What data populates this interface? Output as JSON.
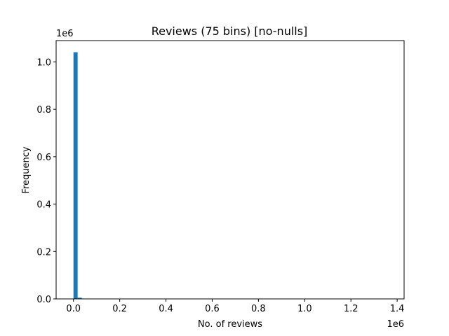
{
  "chart_data": {
    "type": "bar",
    "title": "Reviews (75 bins) [no-nulls]",
    "xlabel": "No. of reviews",
    "ylabel": "Frequency",
    "x_offset_label": "1e6",
    "y_offset_label": "1e6",
    "xlim": [
      -75000,
      1430000
    ],
    "ylim": [
      0,
      1090000
    ],
    "x_ticks": [
      0,
      200000,
      400000,
      600000,
      800000,
      1000000,
      1200000,
      1400000
    ],
    "x_tick_labels": [
      "0.0",
      "0.2",
      "0.4",
      "0.6",
      "0.8",
      "1.0",
      "1.2",
      "1.4"
    ],
    "y_ticks": [
      0,
      200000,
      400000,
      600000,
      800000,
      1000000
    ],
    "y_tick_labels": [
      "0.0",
      "0.2",
      "0.4",
      "0.6",
      "0.8",
      "1.0"
    ],
    "bar_color": "#1f77b4",
    "bins": [
      {
        "x0": 0,
        "x1": 18000,
        "value": 1041000
      },
      {
        "x0": 18000,
        "x1": 36000,
        "value": 5000
      },
      {
        "x0": 36000,
        "x1": 54000,
        "value": 800
      }
    ],
    "grid": false
  }
}
